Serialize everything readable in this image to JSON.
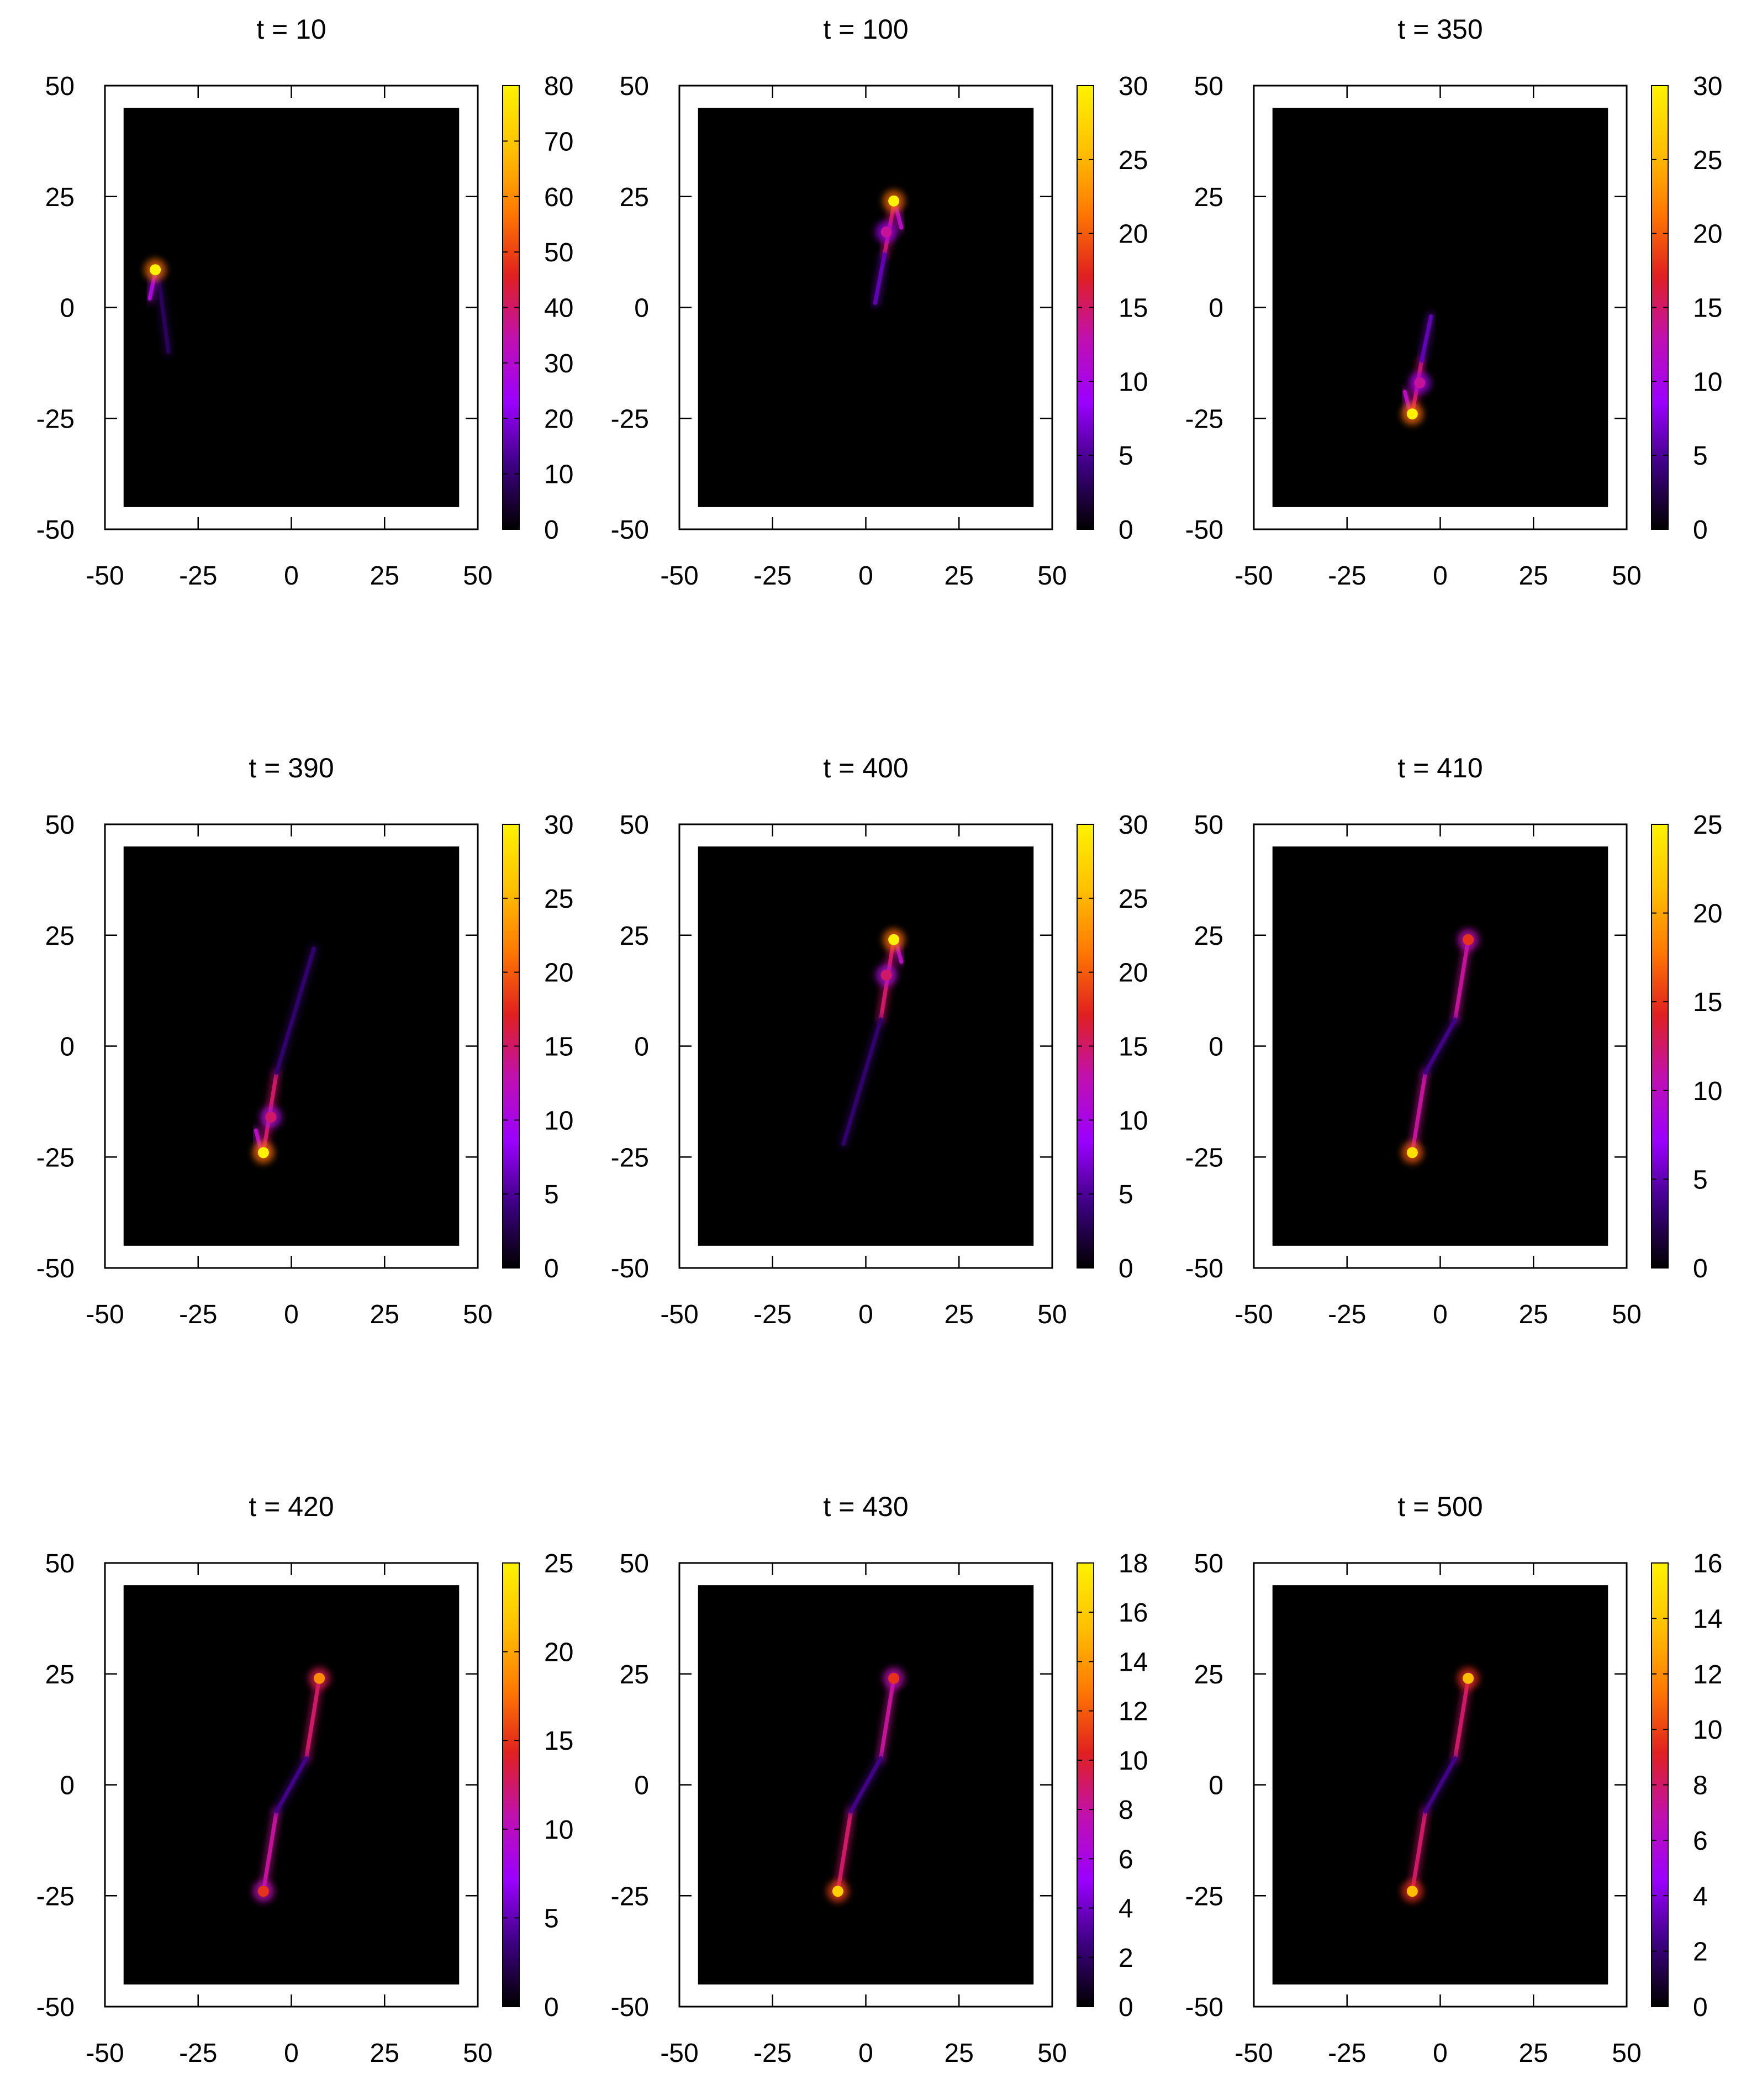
{
  "figure": {
    "layout": {
      "rows": 3,
      "cols": 3
    },
    "colormap": {
      "name": "gnuplot-black-purple-yellow",
      "stops": [
        "#000000",
        "#3c0080",
        "#9a00ff",
        "#c010b0",
        "#e02020",
        "#ff7a00",
        "#ffc200",
        "#fff200"
      ]
    },
    "background_color": "#000000"
  },
  "chart_data": [
    {
      "type": "heatmap",
      "title": "t = 10",
      "xlabel": "",
      "ylabel": "",
      "xlim": [
        -50,
        50
      ],
      "ylim": [
        -50,
        50
      ],
      "xticks": [
        "-50",
        "-25",
        "0",
        "25",
        "50"
      ],
      "yticks": [
        "-50",
        "-25",
        "0",
        "25",
        "50"
      ],
      "data_extent": [
        -45,
        45
      ],
      "colorbar": {
        "min": 0,
        "max": 80,
        "ticks": [
          "0",
          "10",
          "20",
          "30",
          "40",
          "50",
          "60",
          "70",
          "80"
        ]
      },
      "segments": [
        {
          "x1": -36,
          "y1": 9,
          "x2": -33,
          "y2": -10,
          "intensity": 0.1
        },
        {
          "x1": -36.5,
          "y1": 8,
          "x2": -38,
          "y2": 2,
          "intensity": 0.35
        }
      ],
      "blobs": [
        {
          "x": -36.5,
          "y": 8.5,
          "intensity": 1.0
        }
      ]
    },
    {
      "type": "heatmap",
      "title": "t = 100",
      "xlabel": "",
      "ylabel": "",
      "xlim": [
        -50,
        50
      ],
      "ylim": [
        -50,
        50
      ],
      "xticks": [
        "-50",
        "-25",
        "0",
        "25",
        "50"
      ],
      "yticks": [
        "-50",
        "-25",
        "0",
        "25",
        "50"
      ],
      "data_extent": [
        -45,
        45
      ],
      "colorbar": {
        "min": 0,
        "max": 30,
        "ticks": [
          "0",
          "5",
          "10",
          "15",
          "20",
          "25",
          "30"
        ]
      },
      "segments": [
        {
          "x1": 7.5,
          "y1": 23,
          "x2": 5,
          "y2": 12,
          "intensity": 0.5
        },
        {
          "x1": 5,
          "y1": 12,
          "x2": 2.5,
          "y2": 1,
          "intensity": 0.2
        },
        {
          "x1": 8,
          "y1": 23,
          "x2": 9.5,
          "y2": 18,
          "intensity": 0.4
        }
      ],
      "blobs": [
        {
          "x": 7.5,
          "y": 24,
          "intensity": 1.0
        },
        {
          "x": 5.5,
          "y": 17,
          "intensity": 0.45
        }
      ]
    },
    {
      "type": "heatmap",
      "title": "t = 350",
      "xlabel": "",
      "ylabel": "",
      "xlim": [
        -50,
        50
      ],
      "ylim": [
        -50,
        50
      ],
      "xticks": [
        "-50",
        "-25",
        "0",
        "25",
        "50"
      ],
      "yticks": [
        "-50",
        "-25",
        "0",
        "25",
        "50"
      ],
      "data_extent": [
        -45,
        45
      ],
      "colorbar": {
        "min": 0,
        "max": 30,
        "ticks": [
          "0",
          "5",
          "10",
          "15",
          "20",
          "25",
          "30"
        ]
      },
      "segments": [
        {
          "x1": -7.5,
          "y1": -24,
          "x2": -5,
          "y2": -12,
          "intensity": 0.5
        },
        {
          "x1": -5,
          "y1": -12,
          "x2": -2.5,
          "y2": -2,
          "intensity": 0.2
        },
        {
          "x1": -8,
          "y1": -24,
          "x2": -9.5,
          "y2": -19,
          "intensity": 0.4
        }
      ],
      "blobs": [
        {
          "x": -7.5,
          "y": -24,
          "intensity": 1.0
        },
        {
          "x": -5.5,
          "y": -17,
          "intensity": 0.45
        }
      ]
    },
    {
      "type": "heatmap",
      "title": "t = 390",
      "xlabel": "",
      "ylabel": "",
      "xlim": [
        -50,
        50
      ],
      "ylim": [
        -50,
        50
      ],
      "xticks": [
        "-50",
        "-25",
        "0",
        "25",
        "50"
      ],
      "yticks": [
        "-50",
        "-25",
        "0",
        "25",
        "50"
      ],
      "data_extent": [
        -45,
        45
      ],
      "colorbar": {
        "min": 0,
        "max": 30,
        "ticks": [
          "0",
          "5",
          "10",
          "15",
          "20",
          "25",
          "30"
        ]
      },
      "segments": [
        {
          "x1": -7.5,
          "y1": -24,
          "x2": -4,
          "y2": -6,
          "intensity": 0.5
        },
        {
          "x1": -4,
          "y1": -6,
          "x2": 6,
          "y2": 22,
          "intensity": 0.12
        },
        {
          "x1": -8,
          "y1": -24,
          "x2": -9.5,
          "y2": -19,
          "intensity": 0.4
        }
      ],
      "blobs": [
        {
          "x": -7.5,
          "y": -24,
          "intensity": 1.0
        },
        {
          "x": -5.5,
          "y": -16,
          "intensity": 0.5
        }
      ]
    },
    {
      "type": "heatmap",
      "title": "t = 400",
      "xlabel": "",
      "ylabel": "",
      "xlim": [
        -50,
        50
      ],
      "ylim": [
        -50,
        50
      ],
      "xticks": [
        "-50",
        "-25",
        "0",
        "25",
        "50"
      ],
      "yticks": [
        "-50",
        "-25",
        "0",
        "25",
        "50"
      ],
      "data_extent": [
        -45,
        45
      ],
      "colorbar": {
        "min": 0,
        "max": 30,
        "ticks": [
          "0",
          "5",
          "10",
          "15",
          "20",
          "25",
          "30"
        ]
      },
      "segments": [
        {
          "x1": 7.5,
          "y1": 24,
          "x2": 4,
          "y2": 6,
          "intensity": 0.5
        },
        {
          "x1": 4,
          "y1": 6,
          "x2": -6,
          "y2": -22,
          "intensity": 0.12
        },
        {
          "x1": 8,
          "y1": 24,
          "x2": 9.5,
          "y2": 19,
          "intensity": 0.4
        }
      ],
      "blobs": [
        {
          "x": 7.5,
          "y": 24,
          "intensity": 1.0
        },
        {
          "x": 5.5,
          "y": 16,
          "intensity": 0.5
        }
      ]
    },
    {
      "type": "heatmap",
      "title": "t = 410",
      "xlabel": "",
      "ylabel": "",
      "xlim": [
        -50,
        50
      ],
      "ylim": [
        -50,
        50
      ],
      "xticks": [
        "-50",
        "-25",
        "0",
        "25",
        "50"
      ],
      "yticks": [
        "-50",
        "-25",
        "0",
        "25",
        "50"
      ],
      "data_extent": [
        -45,
        45
      ],
      "colorbar": {
        "min": 0,
        "max": 25,
        "ticks": [
          "0",
          "5",
          "10",
          "15",
          "20",
          "25"
        ]
      },
      "segments": [
        {
          "x1": -7.5,
          "y1": -24,
          "x2": -4,
          "y2": -6,
          "intensity": 0.45
        },
        {
          "x1": 7.5,
          "y1": 24,
          "x2": 4,
          "y2": 6,
          "intensity": 0.45
        },
        {
          "x1": -4,
          "y1": -6,
          "x2": 4,
          "y2": 6,
          "intensity": 0.15
        }
      ],
      "blobs": [
        {
          "x": -7.5,
          "y": -24,
          "intensity": 0.95
        },
        {
          "x": 7.5,
          "y": 24,
          "intensity": 0.6
        }
      ]
    },
    {
      "type": "heatmap",
      "title": "t = 420",
      "xlabel": "",
      "ylabel": "",
      "xlim": [
        -50,
        50
      ],
      "ylim": [
        -50,
        50
      ],
      "xticks": [
        "-50",
        "-25",
        "0",
        "25",
        "50"
      ],
      "yticks": [
        "-50",
        "-25",
        "0",
        "25",
        "50"
      ],
      "data_extent": [
        -45,
        45
      ],
      "colorbar": {
        "min": 0,
        "max": 25,
        "ticks": [
          "0",
          "5",
          "10",
          "15",
          "20",
          "25"
        ]
      },
      "segments": [
        {
          "x1": 7.5,
          "y1": 24,
          "x2": 4,
          "y2": 6,
          "intensity": 0.5
        },
        {
          "x1": -7.5,
          "y1": -24,
          "x2": -4,
          "y2": -6,
          "intensity": 0.45
        },
        {
          "x1": -4,
          "y1": -6,
          "x2": 4,
          "y2": 6,
          "intensity": 0.15
        }
      ],
      "blobs": [
        {
          "x": 7.5,
          "y": 24,
          "intensity": 0.75
        },
        {
          "x": -7.5,
          "y": -24,
          "intensity": 0.6
        }
      ]
    },
    {
      "type": "heatmap",
      "title": "t = 430",
      "xlabel": "",
      "ylabel": "",
      "xlim": [
        -50,
        50
      ],
      "ylim": [
        -50,
        50
      ],
      "xticks": [
        "-50",
        "-25",
        "0",
        "25",
        "50"
      ],
      "yticks": [
        "-50",
        "-25",
        "0",
        "25",
        "50"
      ],
      "data_extent": [
        -45,
        45
      ],
      "colorbar": {
        "min": 0,
        "max": 18,
        "ticks": [
          "0",
          "2",
          "4",
          "6",
          "8",
          "10",
          "12",
          "14",
          "16",
          "18"
        ]
      },
      "segments": [
        {
          "x1": -7.5,
          "y1": -24,
          "x2": -4,
          "y2": -6,
          "intensity": 0.5
        },
        {
          "x1": 7.5,
          "y1": 24,
          "x2": 4,
          "y2": 6,
          "intensity": 0.45
        },
        {
          "x1": -4,
          "y1": -6,
          "x2": 4,
          "y2": 6,
          "intensity": 0.15
        }
      ],
      "blobs": [
        {
          "x": -7.5,
          "y": -24,
          "intensity": 0.9
        },
        {
          "x": 7.5,
          "y": 24,
          "intensity": 0.6
        }
      ]
    },
    {
      "type": "heatmap",
      "title": "t = 500",
      "xlabel": "",
      "ylabel": "",
      "xlim": [
        -50,
        50
      ],
      "ylim": [
        -50,
        50
      ],
      "xticks": [
        "-50",
        "-25",
        "0",
        "25",
        "50"
      ],
      "yticks": [
        "-50",
        "-25",
        "0",
        "25",
        "50"
      ],
      "data_extent": [
        -45,
        45
      ],
      "colorbar": {
        "min": 0,
        "max": 16,
        "ticks": [
          "0",
          "2",
          "4",
          "6",
          "8",
          "10",
          "12",
          "14",
          "16"
        ]
      },
      "segments": [
        {
          "x1": 7.5,
          "y1": 24,
          "x2": 4,
          "y2": 6,
          "intensity": 0.5
        },
        {
          "x1": -7.5,
          "y1": -24,
          "x2": -4,
          "y2": -6,
          "intensity": 0.5
        },
        {
          "x1": -4,
          "y1": -6,
          "x2": 4,
          "y2": 6,
          "intensity": 0.15
        }
      ],
      "blobs": [
        {
          "x": 7.5,
          "y": 24,
          "intensity": 0.85
        },
        {
          "x": -7.5,
          "y": -24,
          "intensity": 0.85
        }
      ]
    }
  ]
}
